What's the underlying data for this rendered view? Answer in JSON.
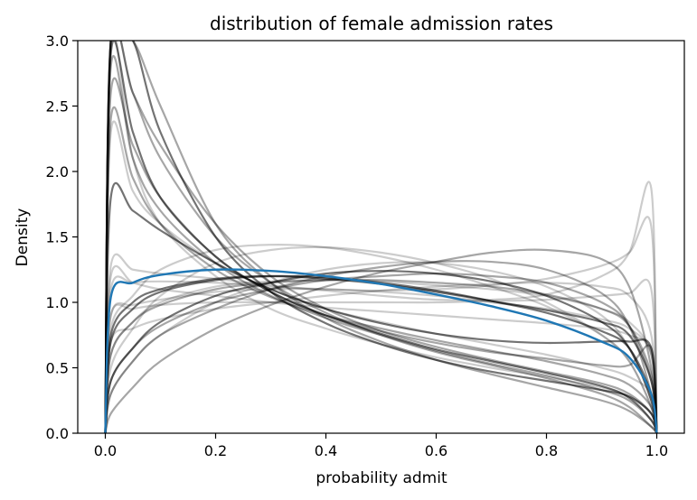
{
  "chart_data": {
    "type": "line",
    "title": "distribution of female admission rates",
    "xlabel": "probability admit",
    "ylabel": "Density",
    "xlim": [
      -0.05,
      1.05
    ],
    "ylim": [
      0,
      3.0
    ],
    "xticks": [
      0.0,
      0.2,
      0.4,
      0.6,
      0.8,
      1.0
    ],
    "xtick_labels": [
      "0.0",
      "0.2",
      "0.4",
      "0.6",
      "0.8",
      "1.0"
    ],
    "yticks": [
      0.0,
      0.5,
      1.0,
      1.5,
      2.0,
      2.5,
      3.0
    ],
    "ytick_labels": [
      "0.0",
      "0.5",
      "1.0",
      "1.5",
      "2.0",
      "2.5",
      "3.0"
    ],
    "grid": false,
    "legend": false,
    "colors": {
      "highlight": "#1f77b4",
      "samples": "#000000",
      "axes": "#000000"
    },
    "x": [
      0.01,
      0.05,
      0.1,
      0.2,
      0.3,
      0.4,
      0.5,
      0.6,
      0.7,
      0.8,
      0.9,
      0.95,
      0.99
    ],
    "highlight_series": {
      "x": [
        0,
        0.01,
        0.05,
        0.1,
        0.2,
        0.3,
        0.4,
        0.5,
        0.6,
        0.7,
        0.8,
        0.9,
        0.95,
        0.99,
        1.0
      ],
      "values": [
        0,
        1.04,
        1.15,
        1.21,
        1.25,
        1.24,
        1.2,
        1.14,
        1.06,
        0.97,
        0.86,
        0.7,
        0.58,
        0.3,
        0
      ]
    },
    "series": [
      {
        "opacity": 0.2,
        "values": [
          2.3,
          1.85,
          1.6,
          1.3,
          1.1,
          0.95,
          0.85,
          0.76,
          0.68,
          0.6,
          0.5,
          0.43,
          0.3
        ]
      },
      {
        "opacity": 0.2,
        "values": [
          1.28,
          1.25,
          1.22,
          1.18,
          1.13,
          1.09,
          1.05,
          1.02,
          1.02,
          1.06,
          1.2,
          1.38,
          1.87
        ]
      },
      {
        "opacity": 0.2,
        "values": [
          1.1,
          1.15,
          1.16,
          1.15,
          1.12,
          1.1,
          1.09,
          1.1,
          1.13,
          1.18,
          1.28,
          1.38,
          1.58
        ]
      },
      {
        "opacity": 0.2,
        "values": [
          0.8,
          1.05,
          1.25,
          1.4,
          1.44,
          1.42,
          1.35,
          1.25,
          1.12,
          0.97,
          0.75,
          0.55,
          0.2
        ]
      },
      {
        "opacity": 0.2,
        "values": [
          0.5,
          0.8,
          1.05,
          1.3,
          1.4,
          1.42,
          1.38,
          1.3,
          1.18,
          1.0,
          0.75,
          0.55,
          0.2
        ]
      },
      {
        "opacity": 0.2,
        "values": [
          0.6,
          0.85,
          1.0,
          1.12,
          1.16,
          1.17,
          1.16,
          1.13,
          1.1,
          1.05,
          0.95,
          0.85,
          0.6
        ]
      },
      {
        "opacity": 0.2,
        "values": [
          0.7,
          0.8,
          0.87,
          0.95,
          1.0,
          1.05,
          1.09,
          1.12,
          1.14,
          1.15,
          1.12,
          1.05,
          0.75
        ]
      },
      {
        "opacity": 0.2,
        "values": [
          0.9,
          0.95,
          0.98,
          1.0,
          1.0,
          1.0,
          1.0,
          1.0,
          1.01,
          1.02,
          1.05,
          1.07,
          1.1
        ]
      },
      {
        "opacity": 0.2,
        "values": [
          0.9,
          0.98,
          1.02,
          1.08,
          1.1,
          1.1,
          1.08,
          1.05,
          1.0,
          0.95,
          0.87,
          0.8,
          0.6
        ]
      },
      {
        "opacity": 0.2,
        "values": [
          3.0,
          2.1,
          1.6,
          1.2,
          0.95,
          0.8,
          0.68,
          0.58,
          0.5,
          0.43,
          0.35,
          0.28,
          0.15
        ]
      },
      {
        "opacity": 0.2,
        "values": [
          0.3,
          0.55,
          0.75,
          1.0,
          1.15,
          1.25,
          1.3,
          1.3,
          1.24,
          1.12,
          0.9,
          0.65,
          0.25
        ]
      },
      {
        "opacity": 0.2,
        "values": [
          1.2,
          1.15,
          1.1,
          1.05,
          1.0,
          0.96,
          0.93,
          0.9,
          0.87,
          0.84,
          0.8,
          0.75,
          0.62
        ]
      },
      {
        "opacity": 0.35,
        "values": [
          2.8,
          2.1,
          1.7,
          1.3,
          1.05,
          0.88,
          0.75,
          0.63,
          0.53,
          0.44,
          0.33,
          0.25,
          0.1
        ]
      },
      {
        "opacity": 0.35,
        "values": [
          3.0,
          2.6,
          2.1,
          1.5,
          1.15,
          0.92,
          0.75,
          0.62,
          0.52,
          0.42,
          0.3,
          0.2,
          0.05
        ]
      },
      {
        "opacity": 0.35,
        "values": [
          2.4,
          1.95,
          1.6,
          1.25,
          1.04,
          0.9,
          0.8,
          0.71,
          0.63,
          0.55,
          0.45,
          0.37,
          0.2
        ]
      },
      {
        "opacity": 0.35,
        "values": [
          0.4,
          0.65,
          0.82,
          1.0,
          1.1,
          1.17,
          1.2,
          1.22,
          1.2,
          1.15,
          1.0,
          0.82,
          0.4
        ]
      },
      {
        "opacity": 0.35,
        "values": [
          0.3,
          0.55,
          0.75,
          0.95,
          1.1,
          1.2,
          1.27,
          1.31,
          1.31,
          1.25,
          1.07,
          0.82,
          0.3
        ]
      },
      {
        "opacity": 0.35,
        "values": [
          0.15,
          0.35,
          0.55,
          0.8,
          0.98,
          1.12,
          1.23,
          1.31,
          1.38,
          1.4,
          1.33,
          1.12,
          0.5
        ]
      },
      {
        "opacity": 0.35,
        "values": [
          3.0,
          3.0,
          2.5,
          1.6,
          1.15,
          0.88,
          0.7,
          0.56,
          0.45,
          0.35,
          0.25,
          0.17,
          0.05
        ]
      },
      {
        "opacity": 0.35,
        "values": [
          3.0,
          2.6,
          2.2,
          1.6,
          1.2,
          0.95,
          0.78,
          0.66,
          0.56,
          0.47,
          0.38,
          0.3,
          0.15
        ]
      },
      {
        "opacity": 0.35,
        "values": [
          0.6,
          0.85,
          0.98,
          1.1,
          1.15,
          1.17,
          1.17,
          1.15,
          1.12,
          1.06,
          0.95,
          0.82,
          0.45
        ]
      },
      {
        "opacity": 0.35,
        "values": [
          2.6,
          2.2,
          1.8,
          1.35,
          1.08,
          0.9,
          0.78,
          0.69,
          0.62,
          0.57,
          0.52,
          0.52,
          0.65
        ]
      },
      {
        "opacity": 0.55,
        "values": [
          2.9,
          2.3,
          1.8,
          1.35,
          1.08,
          0.9,
          0.76,
          0.64,
          0.55,
          0.46,
          0.36,
          0.27,
          0.1
        ]
      },
      {
        "opacity": 0.55,
        "values": [
          0.7,
          0.95,
          1.08,
          1.17,
          1.2,
          1.19,
          1.15,
          1.09,
          1.01,
          0.92,
          0.78,
          0.65,
          0.3
        ]
      },
      {
        "opacity": 0.55,
        "values": [
          0.75,
          1.0,
          1.1,
          1.18,
          1.2,
          1.18,
          1.14,
          1.08,
          1.01,
          0.94,
          0.85,
          0.75,
          0.4
        ]
      },
      {
        "opacity": 0.55,
        "values": [
          0.4,
          0.65,
          0.85,
          1.05,
          1.15,
          1.22,
          1.24,
          1.22,
          1.16,
          1.05,
          0.85,
          0.65,
          0.25
        ]
      },
      {
        "opacity": 0.55,
        "values": [
          3.0,
          3.0,
          2.3,
          1.5,
          1.08,
          0.84,
          0.68,
          0.56,
          0.47,
          0.4,
          0.33,
          0.28,
          0.15
        ]
      },
      {
        "opacity": 0.55,
        "values": [
          1.8,
          1.7,
          1.55,
          1.3,
          1.1,
          0.95,
          0.84,
          0.76,
          0.71,
          0.69,
          0.7,
          0.7,
          0.65
        ]
      }
    ]
  }
}
